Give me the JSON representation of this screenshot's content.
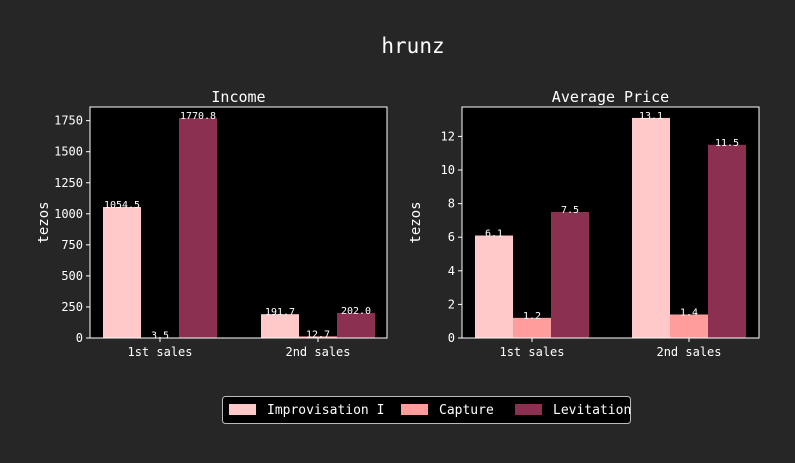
{
  "figure": {
    "title": "hrunz",
    "background": "#262626",
    "axes_background": "#000000"
  },
  "colors": {
    "Improvisation I": "#ffc9c9",
    "Capture": "#ff9c9c",
    "Levitation": "#8b3050"
  },
  "legend": {
    "placement": "bottom-center",
    "items": [
      "Improvisation I",
      "Capture",
      "Levitation"
    ]
  },
  "chart_data": [
    {
      "type": "bar",
      "title": "Income",
      "xlabel": "",
      "ylabel": "tezos",
      "categories": [
        "1st sales",
        "2nd sales"
      ],
      "ylim": [
        0,
        1860
      ],
      "yticks": [
        0,
        250,
        500,
        750,
        1000,
        1250,
        1500,
        1750
      ],
      "label_decimals": 1,
      "grid": false,
      "series": [
        {
          "name": "Improvisation I",
          "values": [
            1054.5,
            191.7
          ]
        },
        {
          "name": "Capture",
          "values": [
            3.5,
            12.7
          ]
        },
        {
          "name": "Levitation",
          "values": [
            1770.8,
            202.0
          ]
        }
      ]
    },
    {
      "type": "bar",
      "title": "Average Price",
      "xlabel": "",
      "ylabel": "tezos",
      "categories": [
        "1st sales",
        "2nd sales"
      ],
      "ylim": [
        0,
        13.75
      ],
      "yticks": [
        0,
        2,
        4,
        6,
        8,
        10,
        12
      ],
      "label_decimals": 1,
      "grid": false,
      "series": [
        {
          "name": "Improvisation I",
          "values": [
            6.1,
            13.1
          ]
        },
        {
          "name": "Capture",
          "values": [
            1.2,
            1.4
          ]
        },
        {
          "name": "Levitation",
          "values": [
            7.5,
            11.5
          ]
        }
      ]
    }
  ]
}
